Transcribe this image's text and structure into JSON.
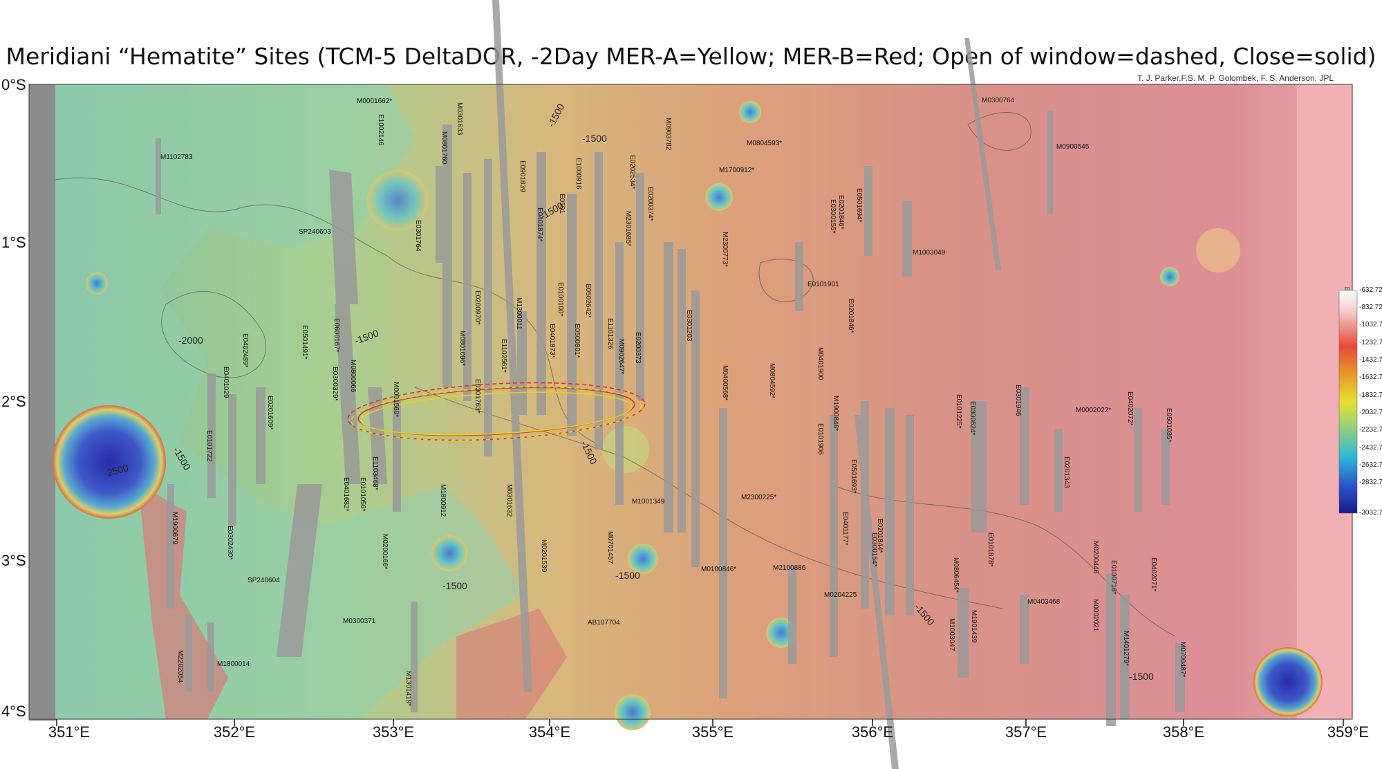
{
  "title": "Meridiani “Hematite” Sites (TCM-5 DeltaDOR, -2Day MER-A=Yellow; MER-B=Red; Open of window=dashed, Close=solid)",
  "credit": "T. J. Parker,F.S. M. P. Golombek, F. S. Anderson, JPL",
  "lat_labels": [
    "0°S",
    "1°S",
    "2°S",
    "3°S",
    "4°S"
  ],
  "lon_labels": [
    "351°E",
    "352°E",
    "353°E",
    "354°E",
    "355°E",
    "356°E",
    "357°E",
    "358°E",
    "359°E"
  ],
  "legend": {
    "unit": "m",
    "values": [
      "-632.72",
      "-832.72",
      "-1032.72",
      "-1232.72",
      "-1432.72",
      "-1632.72",
      "-1832.72",
      "-2032.72",
      "-2232.72",
      "-2432.72",
      "-2632.72",
      "-2832.72",
      "-3032.72"
    ]
  },
  "colors": {
    "mer_a_ellipse": "#e8d21a",
    "mer_b_ellipse": "#e0301e"
  },
  "contour_labels": [
    "-1500",
    "-1500",
    "-1500",
    "-2000",
    "-1500",
    "-2500",
    "-1500",
    "-1500",
    "-1500",
    "-1500",
    "-1500",
    "-1500"
  ],
  "image_labels": [
    "M0001662*",
    "E1002146",
    "M0301633",
    "M0801760",
    "M0903782",
    "M0300764",
    "M1102783",
    "M0804593*",
    "M1700912*",
    "M0900545",
    "E0901839",
    "E1000916",
    "E0202534*",
    "E0200374*",
    "E0401874*",
    "E0501",
    "M2301685*",
    "E0301764",
    "SP240603",
    "M2300773*",
    "E0201846*",
    "E0300155*",
    "E0501694*",
    "M1003049",
    "E0100100*",
    "E0502642*",
    "M1300011",
    "E0200970*",
    "E0101901",
    "E0301203",
    "E0201846*",
    "E0600167*",
    "E0501491*",
    "E0402489*",
    "E0401029",
    "E0201609*",
    "E1102561*",
    "M0801096*",
    "E0401873*",
    "E0500801*",
    "E1101326",
    "M0902647*",
    "E0200373",
    "M0400568*",
    "M0804592*",
    "M0401900",
    "E0301763*",
    "M0001560*",
    "M0800066",
    "E0300329*",
    "M0002022*",
    "E0402072*",
    "E0301946",
    "E0501035*",
    "E0101225*",
    "E0300624*",
    "M1900846*",
    "E0101906",
    "E0101722",
    "E0401682*",
    "E1103468*",
    "E0101056*",
    "E0501693*",
    "E0201343",
    "M1001349",
    "M2300225*",
    "M1800912",
    "M0301632",
    "M0200166*",
    "M1900679",
    "E0302430*",
    "SP240604",
    "M0300371",
    "M0201539",
    "M0701457",
    "E0401177*",
    "E0201844*",
    "E0300154*",
    "M0806454*",
    "E0101878*",
    "M0200446",
    "E0100718*",
    "E0402071*",
    "M0100846*",
    "M2100886",
    "M0204225",
    "M0403468",
    "M1003047",
    "M1901439",
    "M0002021",
    "M1401279*",
    "M2202054",
    "M1800014",
    "M1301419*",
    "AB107704",
    "M0700487*"
  ]
}
